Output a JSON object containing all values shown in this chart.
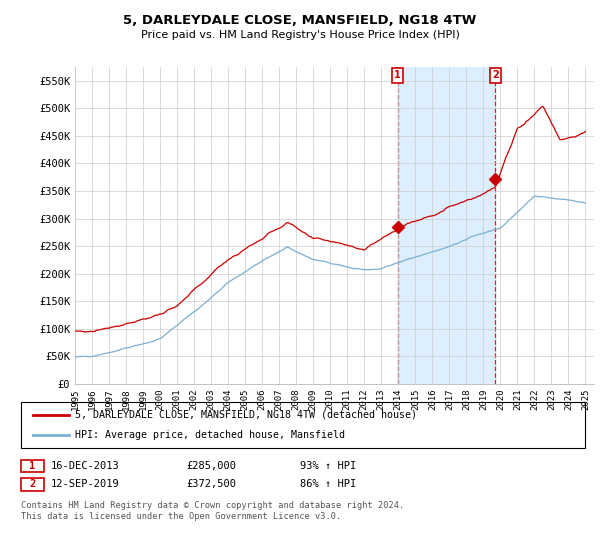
{
  "title": "5, DARLEYDALE CLOSE, MANSFIELD, NG18 4TW",
  "subtitle": "Price paid vs. HM Land Registry's House Price Index (HPI)",
  "ylim": [
    0,
    575000
  ],
  "yticks": [
    0,
    50000,
    100000,
    150000,
    200000,
    250000,
    300000,
    350000,
    400000,
    450000,
    500000,
    550000
  ],
  "ytick_labels": [
    "£0",
    "£50K",
    "£100K",
    "£150K",
    "£200K",
    "£250K",
    "£300K",
    "£350K",
    "£400K",
    "£450K",
    "£500K",
    "£550K"
  ],
  "background_color": "#ffffff",
  "plot_bg_color": "#ffffff",
  "grid_color": "#cccccc",
  "red_line_color": "#cc0000",
  "blue_line_color": "#7bafd4",
  "shade_color": "#ddeeff",
  "marker1_date_x": 2013.958,
  "marker1_y": 285000,
  "marker2_date_x": 2019.708,
  "marker2_y": 372500,
  "marker_box_color": "#cc0000",
  "legend_red_label": "5, DARLEYDALE CLOSE, MANSFIELD, NG18 4TW (detached house)",
  "legend_blue_label": "HPI: Average price, detached house, Mansfield",
  "table_row1": [
    "1",
    "16-DEC-2013",
    "£285,000",
    "93% ↑ HPI"
  ],
  "table_row2": [
    "2",
    "12-SEP-2019",
    "£372,500",
    "86% ↑ HPI"
  ],
  "footer": "Contains HM Land Registry data © Crown copyright and database right 2024.\nThis data is licensed under the Open Government Licence v3.0.",
  "xmin": 1995.0,
  "xmax": 2025.5
}
